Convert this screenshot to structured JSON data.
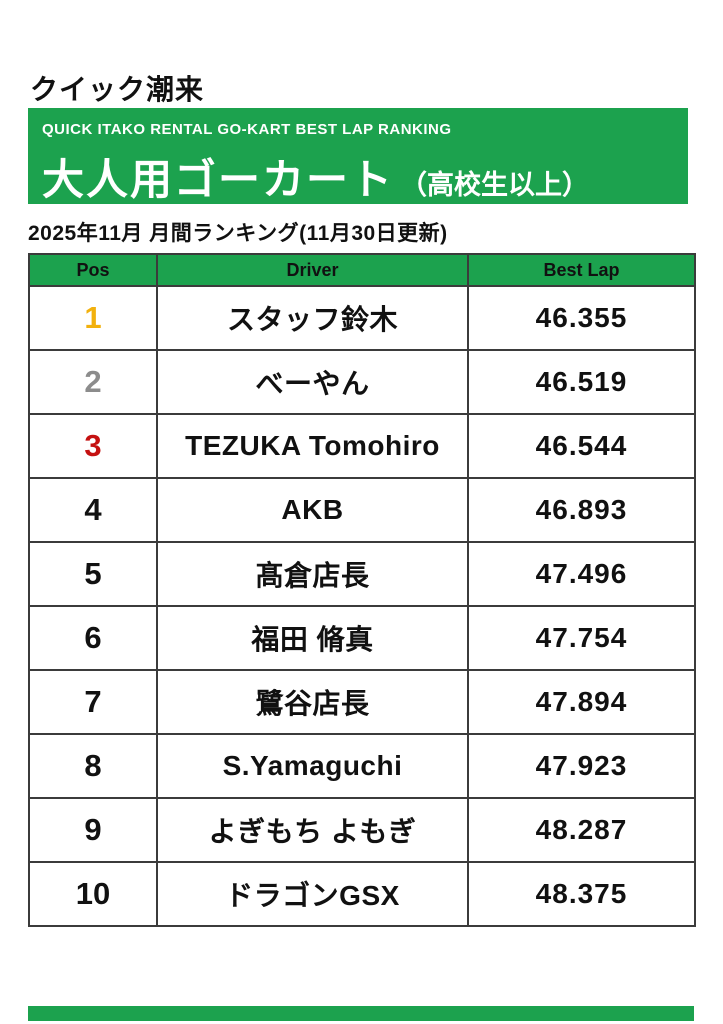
{
  "site_title": "クイック潮来",
  "banner": {
    "subtitle": "QUICK ITAKO RENTAL GO-KART BEST LAP RANKING",
    "title": "大人用ゴーカート",
    "title_note": "（高校生以上）",
    "bg_color": "#1CA24E"
  },
  "period_line": "2025年11月 月間ランキング(11月30日更新)",
  "table": {
    "headers": [
      "Pos",
      "Driver",
      "Best Lap"
    ],
    "rows": [
      {
        "pos": "1",
        "driver": "スタッフ鈴木",
        "best_lap": "46.355",
        "pos_color": "#F2B10E"
      },
      {
        "pos": "2",
        "driver": "べーやん",
        "best_lap": "46.519",
        "pos_color": "#8C8C8C"
      },
      {
        "pos": "3",
        "driver": "TEZUKA Tomohiro",
        "best_lap": "46.544",
        "pos_color": "#C51111"
      },
      {
        "pos": "4",
        "driver": "AKB",
        "best_lap": "46.893",
        "pos_color": "#111111"
      },
      {
        "pos": "5",
        "driver": "髙倉店長",
        "best_lap": "47.496",
        "pos_color": "#111111"
      },
      {
        "pos": "6",
        "driver": "福田 脩真",
        "best_lap": "47.754",
        "pos_color": "#111111"
      },
      {
        "pos": "7",
        "driver": "鷺谷店長",
        "best_lap": "47.894",
        "pos_color": "#111111"
      },
      {
        "pos": "8",
        "driver": "S.Yamaguchi",
        "best_lap": "47.923",
        "pos_color": "#111111"
      },
      {
        "pos": "9",
        "driver": "よぎもち よもぎ",
        "best_lap": "48.287",
        "pos_color": "#111111"
      },
      {
        "pos": "10",
        "driver": "ドラゴンGSX",
        "best_lap": "48.375",
        "pos_color": "#111111"
      }
    ]
  },
  "colors": {
    "accent_green": "#1CA24E",
    "border": "#3B3B3B",
    "rank1_gold": "#F2B10E",
    "rank2_silver": "#8C8C8C",
    "rank3_red": "#C51111",
    "text": "#111111"
  }
}
